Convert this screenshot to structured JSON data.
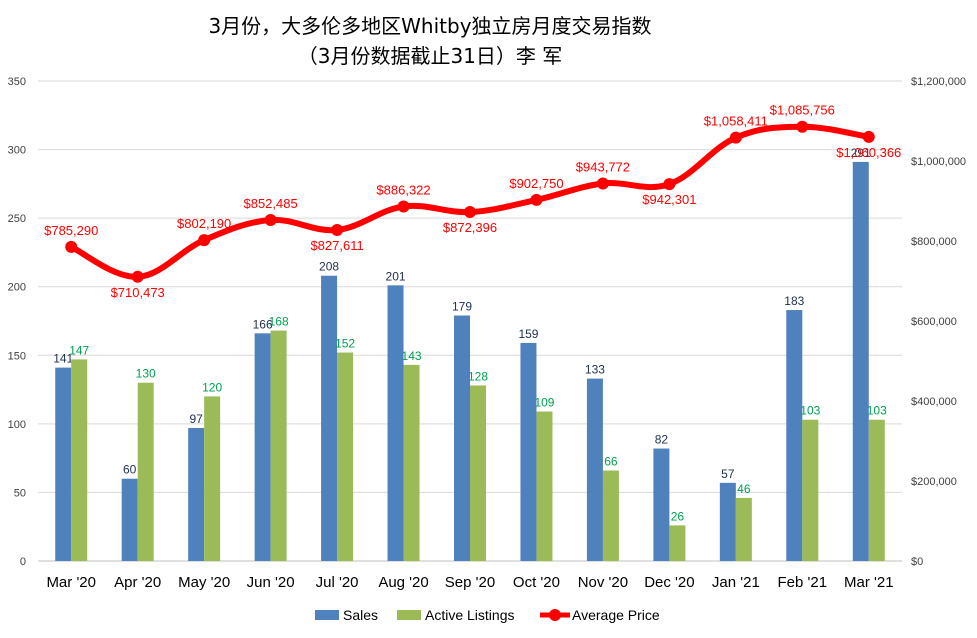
{
  "chart_data": {
    "type": "bar",
    "title": "3月份，大多伦多地区Whitby独立房月度交易指数",
    "subtitle": "（3月份数据截止31日）李 军",
    "categories": [
      "Mar '20",
      "Apr '20",
      "May '20",
      "Jun '20",
      "Jul '20",
      "Aug '20",
      "Sep '20",
      "Oct '20",
      "Nov '20",
      "Dec '20",
      "Jan '21",
      "Feb '21",
      "Mar '21"
    ],
    "series": [
      {
        "name": "Sales",
        "type": "bar",
        "axis": "left",
        "color": "#4f81bd",
        "label_color": "#1f2f4f",
        "values": [
          141,
          60,
          97,
          166,
          208,
          201,
          179,
          159,
          133,
          82,
          57,
          183,
          291
        ]
      },
      {
        "name": "Active Listings",
        "type": "bar",
        "axis": "left",
        "color": "#9bbb59",
        "label_color": "#00a050",
        "values": [
          147,
          130,
          120,
          168,
          152,
          143,
          128,
          109,
          66,
          26,
          46,
          103,
          103
        ]
      },
      {
        "name": "Average Price",
        "type": "line",
        "axis": "right",
        "color": "#ff0000",
        "label_color": "#ff0000",
        "values": [
          785290,
          710473,
          802190,
          852485,
          827611,
          886322,
          872396,
          902750,
          943772,
          942301,
          1058411,
          1085756,
          1060366
        ],
        "labels": [
          "$785,290",
          "$710,473",
          "$802,190",
          "$852,485",
          "$827,611",
          "$886,322",
          "$872,396",
          "$902,750",
          "$943,772",
          "$942,301",
          "$1,058,411",
          "$1,085,756",
          "$1,060,366"
        ]
      }
    ],
    "y_left": {
      "min": 0,
      "max": 350,
      "ticks": [
        "0",
        "50",
        "100",
        "150",
        "200",
        "250",
        "300",
        "350"
      ]
    },
    "y_right": {
      "min": 0,
      "max": 1200000,
      "ticks": [
        "$0",
        "$200,000",
        "$400,000",
        "$600,000",
        "$800,000",
        "$1,000,000",
        "$1,200,000"
      ]
    },
    "grid": true,
    "legend_position": "bottom"
  }
}
